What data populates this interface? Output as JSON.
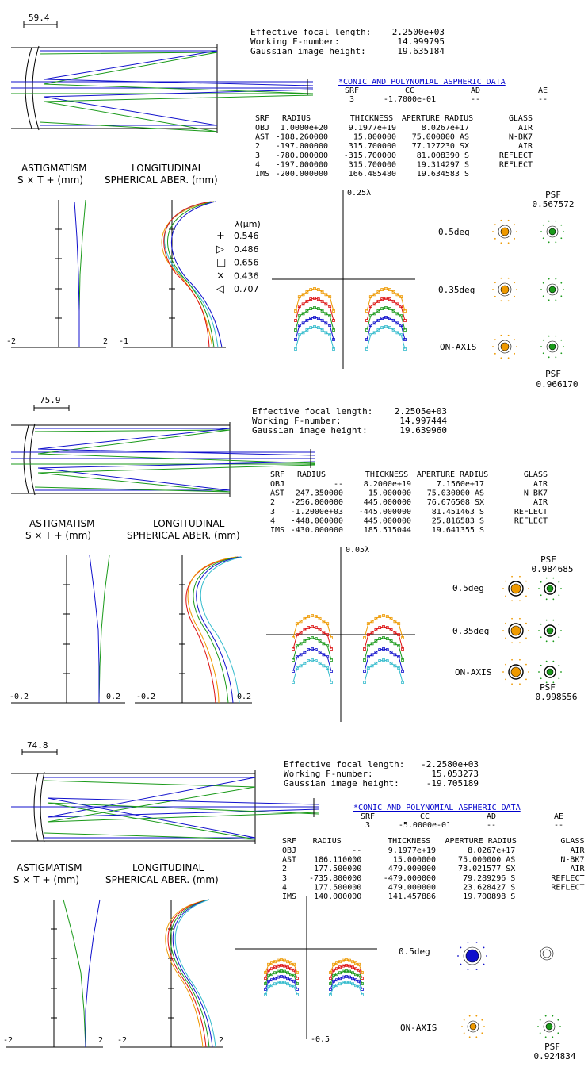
{
  "colors": {
    "green": "#1a9a1a",
    "blue": "#1010cc",
    "red": "#dd1111",
    "cyan": "#33bbcc",
    "orange": "#ee9900",
    "black": "#000000",
    "link": "#0000cc"
  },
  "legend": {
    "title": "λ(μm)",
    "items": [
      {
        "symbol": "+",
        "label": "0.546",
        "color": "#1a9a1a"
      },
      {
        "symbol": "▷",
        "label": "0.486",
        "color": "#1010cc"
      },
      {
        "symbol": "□",
        "label": "0.656",
        "color": "#dd1111"
      },
      {
        "symbol": "×",
        "label": "0.436",
        "color": "#33bbcc"
      },
      {
        "symbol": "◁",
        "label": "0.707",
        "color": "#ee9900"
      }
    ]
  },
  "designs": [
    {
      "scale_label": "59.4",
      "summary": [
        {
          "label": "Effective focal length:",
          "value": "2.2500e+03"
        },
        {
          "label": "Working F-number:",
          "value": "14.999795"
        },
        {
          "label": "Gaussian image height:",
          "value": "19.635184"
        }
      ],
      "asphere": {
        "title": "*CONIC AND POLYNOMIAL ASPHERIC DATA",
        "headers": [
          "SRF",
          "CC",
          "AD",
          "AE"
        ],
        "row": [
          "3",
          "-1.7000e-01",
          "--",
          "--"
        ]
      },
      "table": {
        "headers": [
          "SRF",
          "RADIUS",
          "THICKNESS",
          "APERTURE RADIUS",
          "GLASS"
        ],
        "rows": [
          [
            "OBJ",
            "1.0000e+20",
            "9.1977e+19",
            "8.0267e+17",
            "AIR"
          ],
          [
            "AST",
            "-188.260000",
            "15.000000",
            "75.000000 AS",
            "N-BK7"
          ],
          [
            "2",
            "-197.000000",
            "315.700000",
            "77.127230 SX",
            "AIR"
          ],
          [
            "3",
            "-780.000000",
            "-315.700000",
            "81.008390 S",
            "REFLECT"
          ],
          [
            "4",
            "-197.000000",
            "315.700000",
            "19.314297 S",
            "REFLECT"
          ],
          [
            "IMS",
            "-200.000000",
            "166.485480",
            "19.634583 S",
            ""
          ]
        ]
      },
      "astig_title": [
        "ASTIGMATISM",
        "S × T + (mm)"
      ],
      "long_title": [
        "LONGITUDINAL",
        "SPHERICAL ABER. (mm)"
      ],
      "astig_ticks": [
        "-2",
        "2"
      ],
      "long_ticks": [
        "-1"
      ],
      "fan_scale": "0.25λ",
      "fan_bottom": "",
      "psf_top": {
        "label": "PSF",
        "value": "0.567572"
      },
      "psf_bottom": {
        "label": "PSF",
        "value": "0.966170"
      },
      "field_labels": [
        "0.5deg",
        "0.35deg",
        "ON-AXIS"
      ]
    },
    {
      "scale_label": "75.9",
      "summary": [
        {
          "label": "Effective focal length:",
          "value": "2.2505e+03"
        },
        {
          "label": "Working F-number:",
          "value": "14.997444"
        },
        {
          "label": "Gaussian image height:",
          "value": "19.639960"
        }
      ],
      "table": {
        "headers": [
          "SRF",
          "RADIUS",
          "THICKNESS",
          "APERTURE RADIUS",
          "GLASS"
        ],
        "rows": [
          [
            "OBJ",
            "--",
            "8.2000e+19",
            "7.1560e+17",
            "AIR"
          ],
          [
            "AST",
            "-247.350000",
            "15.000000",
            "75.030000 AS",
            "N-BK7"
          ],
          [
            "2",
            "-256.000000",
            "445.000000",
            "76.676508 SX",
            "AIR"
          ],
          [
            "3",
            "-1.2000e+03",
            "-445.000000",
            "81.451463 S",
            "REFLECT"
          ],
          [
            "4",
            "-448.000000",
            "445.000000",
            "25.816583 S",
            "REFLECT"
          ],
          [
            "IMS",
            "-430.000000",
            "185.515044",
            "19.641355 S",
            ""
          ]
        ]
      },
      "astig_title": [
        "ASTIGMATISM",
        "S × T + (mm)"
      ],
      "long_title": [
        "LONGITUDINAL",
        "SPHERICAL ABER. (mm)"
      ],
      "astig_ticks": [
        "-0.2",
        "0.2"
      ],
      "long_ticks": [
        "-0.2",
        "0.2"
      ],
      "fan_scale": "0.05λ",
      "fan_bottom": "",
      "psf_top": {
        "label": "PSF",
        "value": "0.984685"
      },
      "psf_bottom": {
        "label": "PSF",
        "value": "0.998556"
      },
      "field_labels": [
        "0.5deg",
        "0.35deg",
        "ON-AXIS"
      ]
    },
    {
      "scale_label": "74.8",
      "summary": [
        {
          "label": "Effective focal length:",
          "value": "-2.2580e+03"
        },
        {
          "label": "Working F-number:",
          "value": "15.053273"
        },
        {
          "label": "Gaussian image height:",
          "value": "-19.705189"
        }
      ],
      "asphere": {
        "title": "*CONIC AND POLYNOMIAL ASPHERIC DATA",
        "headers": [
          "SRF",
          "CC",
          "AD",
          "AE"
        ],
        "row": [
          "3",
          "-5.0000e-01",
          "--",
          "--"
        ]
      },
      "table": {
        "headers": [
          "SRF",
          "RADIUS",
          "THICKNESS",
          "APERTURE RADIUS",
          "GLASS"
        ],
        "rows": [
          [
            "OBJ",
            "--",
            "9.1977e+19",
            "8.0267e+17",
            "AIR"
          ],
          [
            "AST",
            "186.110000",
            "15.000000",
            "75.000000 AS",
            "N-BK7"
          ],
          [
            "2",
            "177.500000",
            "479.000000",
            "73.021577 SX",
            "AIR"
          ],
          [
            "3",
            "-735.800000",
            "-479.000000",
            "79.289296 S",
            "REFLECT"
          ],
          [
            "4",
            "177.500000",
            "479.000000",
            "23.628427 S",
            "REFLECT"
          ],
          [
            "IMS",
            "140.000000",
            "141.457886",
            "19.700898 S",
            ""
          ]
        ]
      },
      "astig_title": [
        "ASTIGMATISM",
        "S × T + (mm)"
      ],
      "long_title": [
        "LONGITUDINAL",
        "SPHERICAL ABER. (mm)"
      ],
      "astig_ticks": [
        "-2",
        "2"
      ],
      "long_ticks": [
        "-2",
        "2"
      ],
      "fan_scale": "",
      "fan_bottom": "-0.5",
      "psf_top": null,
      "psf_bottom": {
        "label": "PSF",
        "value": "0.924834"
      },
      "field_labels": [
        "0.5deg",
        "ON-AXIS"
      ]
    }
  ]
}
